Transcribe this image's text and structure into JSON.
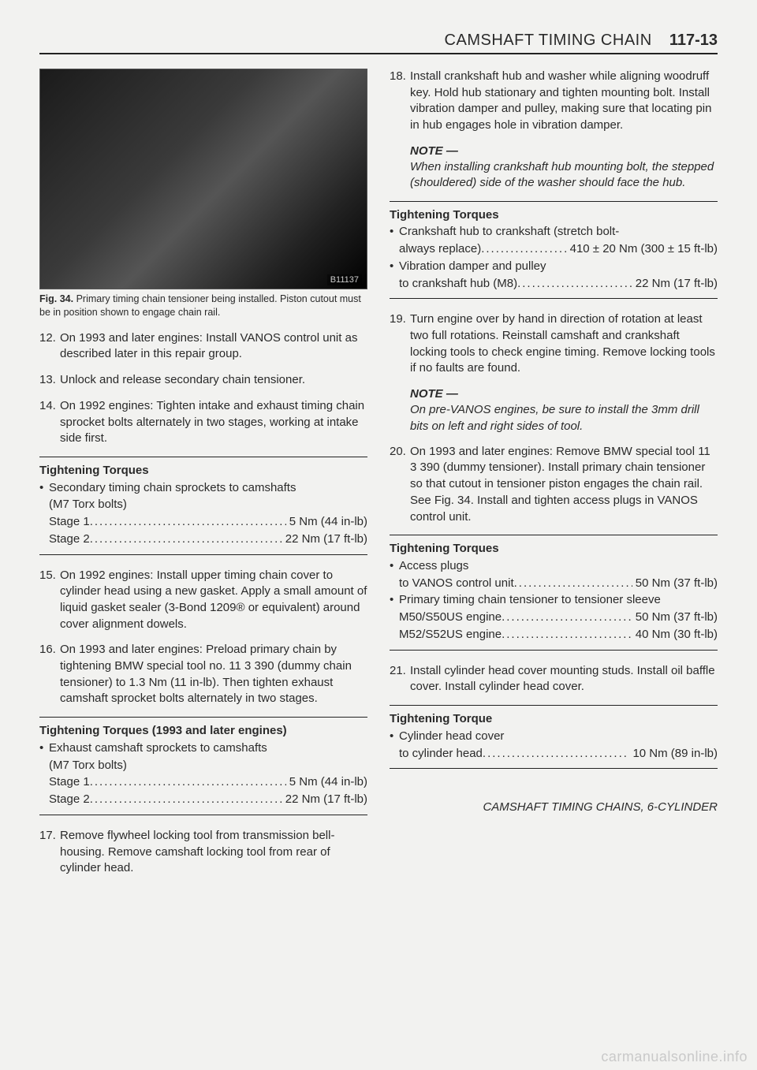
{
  "header": {
    "title": "CAMSHAFT TIMING CHAIN",
    "page_number": "117-13"
  },
  "left": {
    "photo_id": "B11137",
    "fig_caption_lead": "Fig. 34.",
    "fig_caption_text": "Primary timing chain tensioner being installed. Piston cutout must be in position shown to engage chain rail.",
    "steps_a": [
      {
        "n": "12.",
        "t": "On 1993 and later engines: Install VANOS control unit as described later in this repair group."
      },
      {
        "n": "13.",
        "t": "Unlock and release secondary chain tensioner."
      },
      {
        "n": "14.",
        "t": "On 1992 engines: Tighten intake and exhaust timing chain sprocket bolts alternately in two stages, working at intake side first."
      }
    ],
    "torque1": {
      "title": "Tightening Torques",
      "bullet_label": "Secondary timing chain sprockets to camshafts",
      "bullet_sub": "(M7 Torx bolts)",
      "rows": [
        {
          "label": "Stage 1",
          "value": "5 Nm (44 in-lb)"
        },
        {
          "label": "Stage 2",
          "value": "22 Nm (17 ft-lb)"
        }
      ]
    },
    "steps_b": [
      {
        "n": "15.",
        "t": "On 1992 engines: Install upper timing chain cover to cylinder head using a new gasket. Apply a small amount of liquid gasket sealer (3-Bond 1209® or equivalent) around cover alignment dowels."
      },
      {
        "n": "16.",
        "t": "On 1993 and later engines: Preload primary chain by tightening BMW special tool no. 11 3 390 (dummy chain tensioner) to 1.3 Nm (11 in-lb). Then tighten exhaust camshaft sprocket bolts alternately in two stages."
      }
    ],
    "torque2": {
      "title": "Tightening Torques (1993 and later engines)",
      "bullet_label": "Exhaust camshaft sprockets to camshafts",
      "bullet_sub": "(M7 Torx bolts)",
      "rows": [
        {
          "label": "Stage 1",
          "value": "5 Nm (44 in-lb)"
        },
        {
          "label": "Stage 2",
          "value": "22 Nm (17 ft-lb)"
        }
      ]
    },
    "steps_c": [
      {
        "n": "17.",
        "t": "Remove flywheel locking tool from transmission bell-housing. Remove camshaft locking tool from rear of cylinder head."
      }
    ]
  },
  "right": {
    "step18": {
      "n": "18.",
      "t": "Install crankshaft hub and washer while aligning woodruff key. Hold hub stationary and tighten mounting bolt. Install vibration damper and pulley, making sure that locating pin in hub engages hole in vibration damper."
    },
    "note1": {
      "head": "NOTE —",
      "body": "When installing crankshaft hub mounting bolt, the stepped (shouldered) side of the washer should face the hub."
    },
    "torque3": {
      "title": "Tightening Torques",
      "lines": [
        {
          "type": "bullet",
          "text": "Crankshaft hub to crankshaft (stretch bolt-"
        },
        {
          "type": "row",
          "label": "always replace)",
          "value": "410 ± 20 Nm (300 ± 15 ft-lb)"
        },
        {
          "type": "bullet",
          "text": "Vibration damper and pulley"
        },
        {
          "type": "row",
          "label": "to crankshaft hub (M8)",
          "value": "22 Nm (17 ft-lb)"
        }
      ]
    },
    "step19": {
      "n": "19.",
      "t": "Turn engine over by hand in direction of rotation at least two full rotations. Reinstall camshaft and crankshaft locking tools to check engine timing. Remove locking tools if no faults are found."
    },
    "note2": {
      "head": "NOTE —",
      "body": "On pre-VANOS engines, be sure to install the 3mm drill bits on left and right sides of tool."
    },
    "step20": {
      "n": "20.",
      "t": "On 1993 and later engines: Remove BMW special tool 11 3 390 (dummy tensioner). Install primary chain tensioner so that cutout in tensioner piston engages the chain rail. See Fig. 34. Install and tighten access plugs in VANOS control unit."
    },
    "torque4": {
      "title": "Tightening Torques",
      "lines": [
        {
          "type": "bullet",
          "text": "Access plugs"
        },
        {
          "type": "row",
          "label": "to VANOS control unit",
          "value": "50 Nm (37 ft-lb)"
        },
        {
          "type": "bullet",
          "text": "Primary timing chain tensioner to tensioner sleeve"
        },
        {
          "type": "row",
          "label": "M50/S50US engine",
          "value": "50 Nm (37 ft-lb)"
        },
        {
          "type": "row",
          "label": "M52/S52US engine",
          "value": "40 Nm (30 ft-lb)"
        }
      ]
    },
    "step21": {
      "n": "21.",
      "t": "Install cylinder head cover mounting studs. Install oil baffle cover. Install cylinder head cover."
    },
    "torque5": {
      "title": "Tightening Torque",
      "lines": [
        {
          "type": "bullet",
          "text": "Cylinder head cover"
        },
        {
          "type": "row",
          "label": "to cylinder head",
          "value": "10 Nm (89 in-lb)"
        }
      ]
    }
  },
  "footer_section": "CAMSHAFT TIMING CHAINS, 6-CYLINDER",
  "watermark": "carmanualsonline.info"
}
